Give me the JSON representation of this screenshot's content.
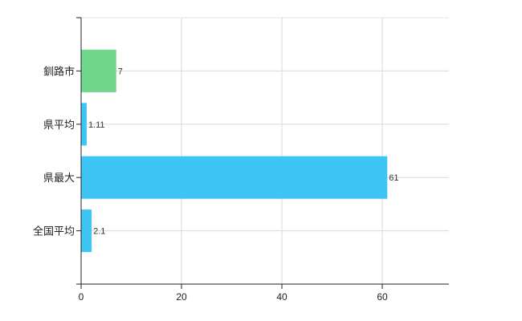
{
  "chart_data": {
    "type": "bar",
    "orientation": "horizontal",
    "categories": [
      "釧路市",
      "県平均",
      "県最大",
      "全国平均"
    ],
    "values": [
      7,
      1.11,
      61,
      2.1
    ],
    "value_labels": [
      "7",
      "1.11",
      "61",
      "2.1"
    ],
    "xlim": [
      0,
      73
    ],
    "x_ticks": [
      "0",
      "20",
      "40",
      "60"
    ],
    "grid": true,
    "colors": [
      "#6fd68a",
      "#3ec4f5",
      "#3ec4f5",
      "#3ec4f5"
    ],
    "title": "",
    "xlabel": "",
    "ylabel": ""
  }
}
